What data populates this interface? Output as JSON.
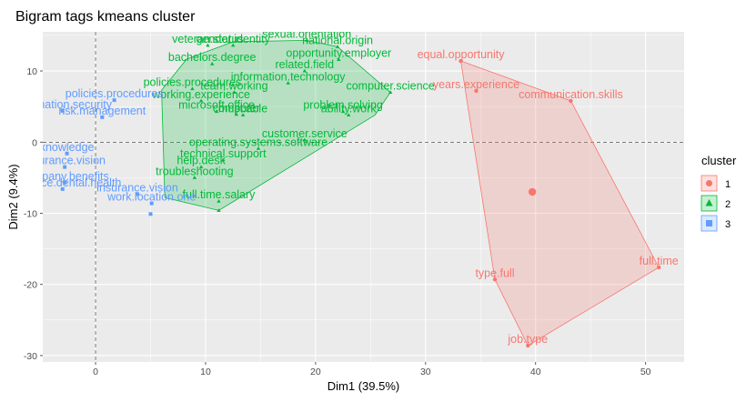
{
  "chart_data": {
    "type": "scatter",
    "title": "Bigram tags kmeans cluster",
    "xlabel": "Dim1 (39.5%)",
    "ylabel": "Dim2 (9.4%)",
    "xlim": [
      -4.8,
      53.5
    ],
    "ylim": [
      -30.9,
      15.5
    ],
    "xticks": [
      0,
      10,
      20,
      30,
      40,
      50
    ],
    "yticks": [
      10,
      0,
      -10,
      -20,
      -30
    ],
    "grid": true,
    "legend": {
      "title": "cluster",
      "position": "right",
      "items": [
        {
          "label": "1",
          "color": "#F8766D",
          "shape": "circle"
        },
        {
          "label": "2",
          "color": "#00BA38",
          "shape": "triangle"
        },
        {
          "label": "3",
          "color": "#619CFF",
          "shape": "square"
        }
      ]
    },
    "clusters": [
      {
        "name": "1",
        "color": "#F8766D",
        "shape": "circle",
        "centroid": {
          "x": 39.7,
          "y": -7.0
        },
        "hull": [
          [
            33.2,
            11.4
          ],
          [
            43.2,
            5.8
          ],
          [
            51.2,
            -17.6
          ],
          [
            39.3,
            -28.6
          ],
          [
            36.3,
            -19.3
          ]
        ],
        "points": [
          {
            "x": 33.2,
            "y": 11.4,
            "label": "equal.opportunity"
          },
          {
            "x": 34.6,
            "y": 7.2,
            "label": "years.experience"
          },
          {
            "x": 43.2,
            "y": 5.8,
            "label": "communication.skills"
          },
          {
            "x": 51.2,
            "y": -17.6,
            "label": "full.time"
          },
          {
            "x": 36.3,
            "y": -19.3,
            "label": "type.full"
          },
          {
            "x": 39.3,
            "y": -28.6,
            "label": "job.type"
          }
        ]
      },
      {
        "name": "2",
        "color": "#00BA38",
        "shape": "triangle",
        "hull": [
          [
            8.3,
            11.7
          ],
          [
            12.5,
            14.1
          ],
          [
            19.2,
            14.3
          ],
          [
            22.0,
            13.4
          ],
          [
            26.8,
            7.0
          ],
          [
            25.4,
            3.8
          ],
          [
            11.2,
            -9.6
          ],
          [
            6.3,
            -7.8
          ],
          [
            6.0,
            7.3
          ]
        ],
        "points": [
          {
            "x": 19.2,
            "y": 14.3,
            "label": "sexual.orientation"
          },
          {
            "x": 22.0,
            "y": 13.4,
            "label": "national.origin"
          },
          {
            "x": 12.5,
            "y": 13.6,
            "label": "gender.identity"
          },
          {
            "x": 10.2,
            "y": 13.6,
            "label": "veteran.status"
          },
          {
            "x": 22.1,
            "y": 11.6,
            "label": "opportunity.employer"
          },
          {
            "x": 10.6,
            "y": 11.0,
            "label": "bachelors.degree"
          },
          {
            "x": 19.0,
            "y": 10.0,
            "label": "related.field"
          },
          {
            "x": 17.5,
            "y": 8.3,
            "label": "information.technology"
          },
          {
            "x": 26.8,
            "y": 7.0,
            "label": "computer.science"
          },
          {
            "x": 22.5,
            "y": 4.3,
            "label": "problem.solving"
          },
          {
            "x": 23.0,
            "y": 3.8,
            "label": "ability.work"
          },
          {
            "x": 13.4,
            "y": 3.8,
            "label": "must.able"
          },
          {
            "x": 8.8,
            "y": 7.5,
            "label": "policies.procedures"
          },
          {
            "x": 12.6,
            "y": 7.0,
            "label": "team.working"
          },
          {
            "x": 9.6,
            "y": 5.8,
            "label": "working.experience"
          },
          {
            "x": 11.0,
            "y": 4.3,
            "label": "microsoft.office"
          },
          {
            "x": 12.8,
            "y": 3.9,
            "label": "computer"
          },
          {
            "x": 19.0,
            "y": 0.3,
            "label": "customer.service"
          },
          {
            "x": 14.8,
            "y": -0.9,
            "label": "operating.systems.software"
          },
          {
            "x": 11.6,
            "y": -2.5,
            "label": "technical.support"
          },
          {
            "x": 9.6,
            "y": -3.5,
            "label": "help.desk"
          },
          {
            "x": 9.0,
            "y": -5.0,
            "label": "troubleshooting"
          },
          {
            "x": 11.2,
            "y": -8.3,
            "label": "full.time.salary"
          },
          {
            "x": 11.2,
            "y": -9.6,
            "label": ""
          }
        ]
      },
      {
        "name": "3",
        "color": "#619CFF",
        "shape": "square",
        "points": [
          {
            "x": -3.0,
            "y": 4.4,
            "label": "information.security"
          },
          {
            "x": 1.7,
            "y": 5.9,
            "label": "policies.procedures"
          },
          {
            "x": 0.6,
            "y": 3.5,
            "label": "risk.management"
          },
          {
            "x": -2.6,
            "y": -1.6,
            "label": "knowledge"
          },
          {
            "x": -2.8,
            "y": -3.5,
            "label": "insurance.vision"
          },
          {
            "x": -2.8,
            "y": -5.7,
            "label": "company.benefits"
          },
          {
            "x": -3.0,
            "y": -6.6,
            "label": "insurance.dental.health"
          },
          {
            "x": 3.8,
            "y": -7.3,
            "label": "insurance.vision"
          },
          {
            "x": 5.1,
            "y": -8.6,
            "label": "work.location.one"
          },
          {
            "x": 5.0,
            "y": -10.1,
            "label": ""
          }
        ]
      }
    ]
  }
}
